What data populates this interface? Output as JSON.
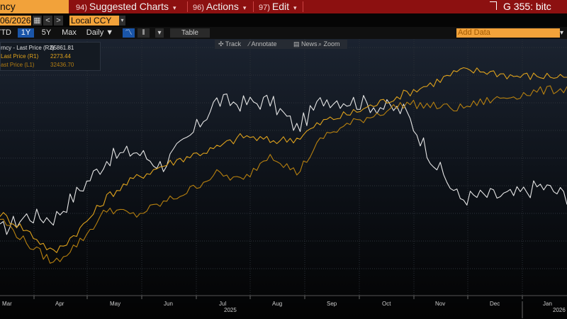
{
  "topbar": {
    "left_text": "ncy",
    "suggested": {
      "num": "94)",
      "label": "Suggested Charts"
    },
    "actions": {
      "num": "96)",
      "label": "Actions"
    },
    "edit": {
      "num": "97)",
      "label": "Edit"
    },
    "caret": "▾",
    "right_text": "G 355: bitc"
  },
  "toolbar2": {
    "date": "06/2026",
    "prev": "<",
    "next": ">",
    "currency": "Local CCY",
    "currency_caret": "▾"
  },
  "toolbar3": {
    "ranges": [
      "YTD",
      "1Y",
      "5Y",
      "Max"
    ],
    "active_range": "1Y",
    "frequency": "Daily ▼",
    "line_icon": "line-chart-icon",
    "candle_icon": "candlestick-icon",
    "type_caret": "▾",
    "table": "Table",
    "add_data_placeholder": "Add Data",
    "add_data_caret": "▾"
  },
  "chart_tools": {
    "track": "✣ Track",
    "annotate": "⁄ Annotate",
    "news": "▤ News",
    "zoom": "⌕ Zoom"
  },
  "legend": [
    {
      "name": "rncy - Last Price (R2)",
      "value": "65861.81",
      "color": "#e0e0e0"
    },
    {
      "name": "Last Price (R1)",
      "value": "2273.44",
      "color": "#e0a31c"
    },
    {
      "name": "ast Price (L1)",
      "value": "32436.70",
      "color": "#b47e12"
    }
  ],
  "x_axis": {
    "months": [
      "Mar",
      "Apr",
      "May",
      "Jun",
      "Jul",
      "Aug",
      "Sep",
      "Oct",
      "Nov",
      "Dec",
      "Jan"
    ],
    "years": [
      "2025",
      "2026"
    ]
  },
  "colors": {
    "series_white": "#e6e6e6",
    "series_gold": "#e0a31c",
    "series_amber": "#b8810f",
    "accent_orange": "#f2a23a",
    "menu_red": "#8c1010"
  },
  "chart_data": {
    "type": "line",
    "note_y": "relative price levels; three series on independent right/left axes, no y tick labels visible",
    "x": [
      "Mar",
      "Mar",
      "Apr",
      "Apr",
      "May",
      "May",
      "Jun",
      "Jun",
      "Jul",
      "Jul",
      "Aug",
      "Aug",
      "Sep",
      "Sep",
      "Oct",
      "Oct",
      "Nov",
      "Nov",
      "Dec",
      "Dec",
      "Jan",
      "Jan"
    ],
    "series": [
      {
        "name": "rncy - Last Price (R2)",
        "color": "#e6e6e6",
        "values": [
          26,
          32,
          31,
          43,
          55,
          58,
          52,
          63,
          78,
          77,
          78,
          67,
          79,
          78,
          76,
          74,
          55,
          39,
          40,
          40,
          44,
          40
        ]
      },
      {
        "name": "Last Price (R1)",
        "color": "#e0a31c",
        "values": [
          33,
          26,
          17,
          27,
          40,
          47,
          52,
          56,
          59,
          64,
          62,
          63,
          70,
          73,
          77,
          81,
          85,
          90,
          90,
          88,
          88,
          88
        ]
      },
      {
        "name": "ast Price (L1)",
        "color": "#b8810f",
        "values": [
          31,
          21,
          13,
          22,
          35,
          32,
          37,
          42,
          49,
          46,
          57,
          49,
          64,
          69,
          73,
          77,
          76,
          75,
          78,
          80,
          82,
          83
        ]
      }
    ]
  }
}
